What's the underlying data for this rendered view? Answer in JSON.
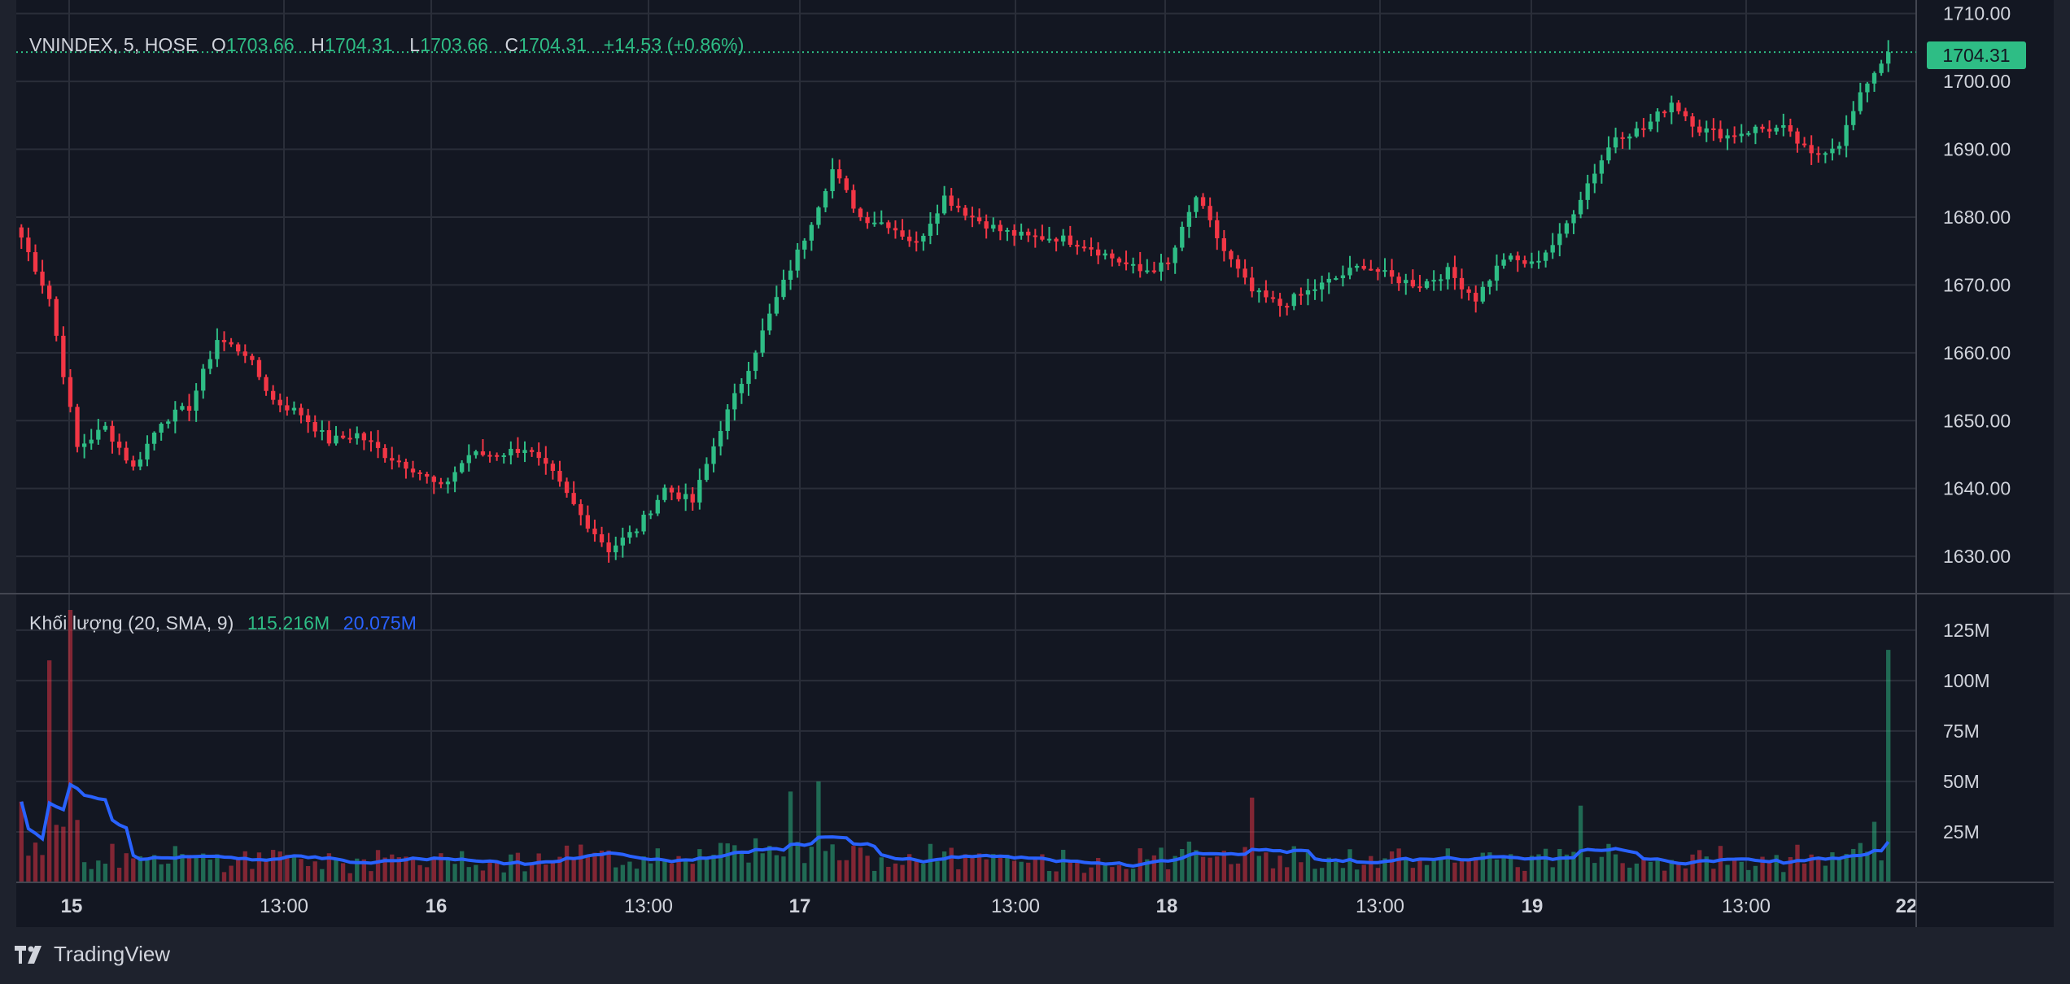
{
  "header": {
    "symbol": "VNINDEX, 5, HOSE",
    "o_label": "O",
    "o_value": "1703.66",
    "h_label": "H",
    "h_value": "1704.31",
    "l_label": "L",
    "l_value": "1703.66",
    "c_label": "C",
    "c_value": "1704.31",
    "change": "+14.53 (+0.86%)"
  },
  "volume_legend": {
    "title": "Khối lượng (20, SMA, 9)",
    "volume": "115.216M",
    "sma": "20.075M"
  },
  "last_price_tag": "1704.31",
  "brand": "TradingView",
  "colors": {
    "background": "#131722",
    "frame": "#1e222d",
    "grid": "#2a2e39",
    "up": "#2ebd85",
    "down": "#f23645",
    "sma": "#2962ff"
  },
  "chart_data": [
    {
      "type": "candlestick",
      "y_ticks": [
        "1630.00",
        "1640.00",
        "1650.00",
        "1660.00",
        "1670.00",
        "1680.00",
        "1690.00",
        "1700.00",
        "1710.00"
      ],
      "ylim": [
        1624.5,
        1712
      ],
      "x_tick_labels": [
        "15",
        "13:00",
        "16",
        "13:00",
        "17",
        "13:00",
        "18",
        "13:00",
        "19",
        "13:00",
        "22"
      ],
      "x_tick_bold": [
        true,
        false,
        true,
        false,
        true,
        false,
        true,
        false,
        true,
        false,
        true
      ],
      "last_price": 1704.31,
      "anchors": [
        [
          0,
          1677
        ],
        [
          4,
          1668
        ],
        [
          8,
          1646
        ],
        [
          12,
          1649
        ],
        [
          16,
          1643
        ],
        [
          20,
          1650
        ],
        [
          24,
          1652
        ],
        [
          28,
          1662
        ],
        [
          32,
          1660
        ],
        [
          36,
          1653
        ],
        [
          40,
          1651
        ],
        [
          44,
          1647
        ],
        [
          48,
          1648
        ],
        [
          52,
          1645
        ],
        [
          56,
          1643
        ],
        [
          60,
          1640
        ],
        [
          64,
          1645
        ],
        [
          68,
          1645
        ],
        [
          72,
          1646
        ],
        [
          76,
          1642
        ],
        [
          80,
          1636
        ],
        [
          84,
          1631
        ],
        [
          88,
          1634
        ],
        [
          92,
          1640
        ],
        [
          96,
          1638
        ],
        [
          100,
          1649
        ],
        [
          104,
          1658
        ],
        [
          108,
          1668
        ],
        [
          112,
          1677
        ],
        [
          116,
          1687
        ],
        [
          120,
          1680
        ],
        [
          124,
          1679
        ],
        [
          128,
          1676
        ],
        [
          132,
          1683
        ],
        [
          136,
          1680
        ],
        [
          140,
          1678
        ],
        [
          144,
          1677
        ],
        [
          148,
          1677
        ],
        [
          152,
          1676
        ],
        [
          156,
          1674
        ],
        [
          160,
          1672
        ],
        [
          164,
          1673
        ],
        [
          168,
          1683
        ],
        [
          172,
          1675
        ],
        [
          176,
          1669
        ],
        [
          180,
          1667
        ],
        [
          184,
          1669
        ],
        [
          188,
          1671
        ],
        [
          192,
          1673
        ],
        [
          196,
          1671
        ],
        [
          200,
          1670
        ],
        [
          204,
          1672
        ],
        [
          208,
          1668
        ],
        [
          212,
          1674
        ],
        [
          216,
          1673
        ],
        [
          220,
          1677
        ],
        [
          224,
          1685
        ],
        [
          228,
          1692
        ],
        [
          232,
          1693
        ],
        [
          236,
          1697
        ],
        [
          240,
          1693
        ],
        [
          244,
          1692
        ],
        [
          248,
          1693
        ],
        [
          252,
          1693
        ],
        [
          256,
          1689
        ],
        [
          260,
          1691
        ],
        [
          264,
          1700
        ],
        [
          267,
          1704.31
        ]
      ]
    },
    {
      "type": "bar",
      "y_ticks": [
        "25M",
        "50M",
        "75M",
        "100M",
        "125M"
      ],
      "ylim": [
        0,
        135
      ],
      "last_volume": 115.216,
      "last_sma": 20.075
    }
  ]
}
